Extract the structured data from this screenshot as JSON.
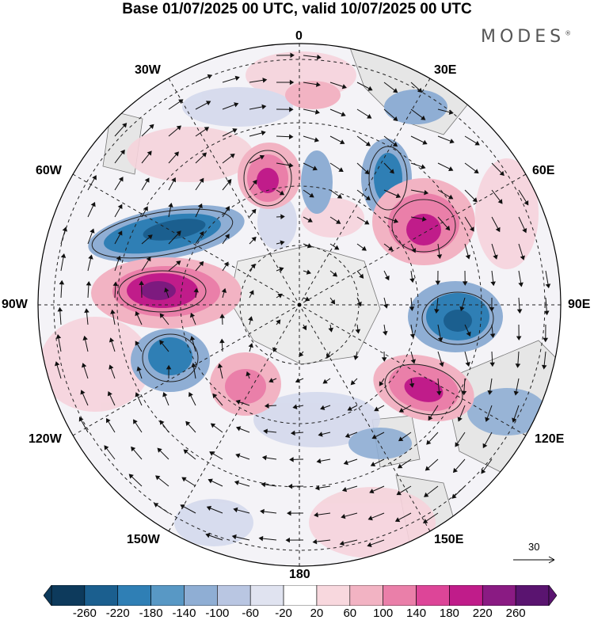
{
  "header": {
    "title": "Base 01/07/2025 00 UTC, valid 10/07/2025 00 UTC",
    "brand": "MODES",
    "brand_mark": "®"
  },
  "map": {
    "projection": "south-polar-stereographic",
    "longitude_labels": {
      "top": "0",
      "top_right": "30E",
      "right_upper": "60E",
      "right": "90E",
      "right_lower": "120E",
      "bottom_right": "150E",
      "bottom": "180",
      "bottom_left": "150W",
      "left_lower": "120W",
      "left": "90W",
      "left_upper": "60W",
      "top_left": "30W"
    },
    "reference_vector": "30"
  },
  "colorbar": {
    "ticks": [
      "-260",
      "-220",
      "-180",
      "-140",
      "-100",
      "-60",
      "-20",
      "20",
      "60",
      "100",
      "140",
      "180",
      "220",
      "260"
    ],
    "colors": [
      "#0d3a5c",
      "#1b5f8f",
      "#2f7fb5",
      "#5898c5",
      "#8faed4",
      "#b9c6e2",
      "#e0e3f0",
      "#ffffff",
      "#f8d8de",
      "#f2b3c3",
      "#ea7fa9",
      "#dd4598",
      "#c01c8a",
      "#8a1b83",
      "#5a1470"
    ],
    "anomaly_colors": {
      "strong_negative": "#2f7fb5",
      "moderate_negative": "#8faed4",
      "weak_negative": "#d4d9ec",
      "weak_positive": "#f6d3db",
      "moderate_positive": "#ea7fa9",
      "strong_positive": "#c01c8a",
      "extreme_positive": "#7d1a7f",
      "land": "#e8e8e8"
    }
  }
}
